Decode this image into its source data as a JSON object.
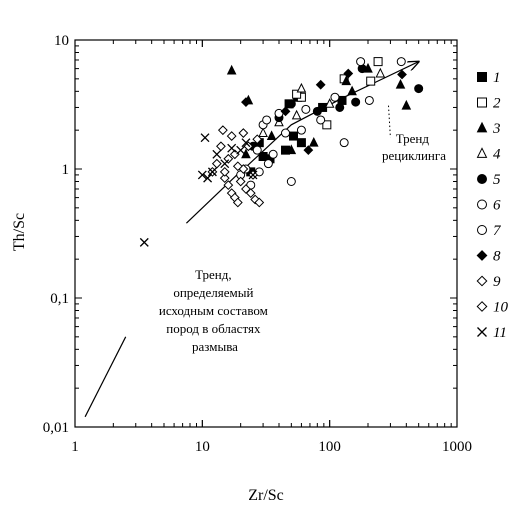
{
  "chart_data": {
    "type": "scatter",
    "xlabel": "Zr/Sc",
    "ylabel": "Th/Sc",
    "xscale": "log",
    "yscale": "log",
    "xlim": [
      1,
      1000
    ],
    "ylim": [
      0.01,
      10
    ],
    "x_ticks": [
      {
        "value": 1,
        "label": "1"
      },
      {
        "value": 10,
        "label": "10"
      },
      {
        "value": 100,
        "label": "100"
      },
      {
        "value": 1000,
        "label": "1000"
      }
    ],
    "y_ticks": [
      {
        "value": 0.01,
        "label": "0,01"
      },
      {
        "value": 0.1,
        "label": "0,1"
      },
      {
        "value": 1,
        "label": "1"
      },
      {
        "value": 10,
        "label": "10"
      }
    ],
    "legend_placement": "right",
    "annotations": [
      {
        "lines": [
          "Тренд,",
          "определяемый",
          "исходным составом",
          "пород в областях",
          "размыва"
        ]
      },
      {
        "lines": [
          "Тренд",
          "рециклинга"
        ]
      }
    ],
    "trend_lines": [
      {
        "name": "source",
        "points": [
          [
            1.2,
            0.012
          ],
          [
            2.5,
            0.05
          ]
        ],
        "arrow": false,
        "dashed": false
      },
      {
        "name": "source-upper",
        "points": [
          [
            7.5,
            0.38
          ],
          [
            22,
            1.05
          ]
        ],
        "arrow": false,
        "dashed": false
      },
      {
        "name": "recycling",
        "points": [
          [
            20,
            0.95
          ],
          [
            50,
            2.2
          ],
          [
            130,
            3.6
          ],
          [
            500,
            6.8
          ]
        ],
        "arrow": true,
        "dashed": false
      },
      {
        "name": "recycling-leader",
        "points": [
          [
            290,
            3.1
          ],
          [
            300,
            1.75
          ]
        ],
        "arrow": false,
        "dashed": true
      }
    ],
    "series": [
      {
        "name": "1",
        "marker": "square",
        "filled": true,
        "points": [
          [
            48,
            3.2
          ],
          [
            52,
            1.8
          ],
          [
            56,
            3.6
          ],
          [
            34,
            1.2
          ],
          [
            45,
            1.4
          ],
          [
            24,
            0.95
          ],
          [
            30,
            1.25
          ],
          [
            28,
            1.6
          ],
          [
            125,
            3.4
          ],
          [
            60,
            1.6
          ],
          [
            88,
            3.0
          ]
        ]
      },
      {
        "name": "2",
        "marker": "square",
        "filled": false,
        "points": [
          [
            240,
            6.8
          ],
          [
            130,
            5.0
          ],
          [
            210,
            4.8
          ],
          [
            60,
            3.6
          ],
          [
            95,
            2.2
          ],
          [
            55,
            3.8
          ]
        ]
      },
      {
        "name": "3",
        "marker": "triangle",
        "filled": true,
        "points": [
          [
            17,
            5.8
          ],
          [
            23,
            3.4
          ],
          [
            135,
            4.8
          ],
          [
            200,
            6.0
          ],
          [
            360,
            4.5
          ],
          [
            400,
            3.1
          ],
          [
            22,
            1.3
          ],
          [
            35,
            1.8
          ],
          [
            50,
            1.4
          ],
          [
            75,
            1.6
          ],
          [
            150,
            4.0
          ]
        ]
      },
      {
        "name": "4",
        "marker": "triangle",
        "filled": false,
        "points": [
          [
            60,
            4.2
          ],
          [
            100,
            3.2
          ],
          [
            30,
            1.9
          ],
          [
            40,
            2.3
          ],
          [
            55,
            2.6
          ],
          [
            250,
            5.5
          ]
        ]
      },
      {
        "name": "5",
        "marker": "circle",
        "filled": true,
        "points": [
          [
            500,
            4.2
          ],
          [
            180,
            6.0
          ],
          [
            160,
            3.3
          ],
          [
            40,
            2.5
          ],
          [
            25,
            1.5
          ],
          [
            80,
            2.8
          ],
          [
            120,
            3.0
          ],
          [
            50,
            3.2
          ]
        ]
      },
      {
        "name": "6",
        "marker": "circle",
        "filled": false,
        "points": [
          [
            175,
            6.8
          ],
          [
            365,
            6.8
          ],
          [
            205,
            3.4
          ],
          [
            130,
            1.6
          ],
          [
            50,
            0.8
          ],
          [
            65,
            2.9
          ],
          [
            33,
            1.1
          ],
          [
            27,
            1.4
          ],
          [
            40,
            2.7
          ],
          [
            22,
            1.0
          ],
          [
            30,
            2.2
          ]
        ]
      },
      {
        "name": "7",
        "marker": "circle",
        "filled": false,
        "points": [
          [
            28,
            0.95
          ],
          [
            36,
            1.3
          ],
          [
            45,
            1.9
          ],
          [
            110,
            3.6
          ],
          [
            24,
            0.75
          ],
          [
            20,
            0.9
          ],
          [
            60,
            2.0
          ],
          [
            32,
            2.4
          ],
          [
            85,
            2.4
          ]
        ]
      },
      {
        "name": "8",
        "marker": "diamond",
        "filled": true,
        "points": [
          [
            370,
            5.4
          ],
          [
            85,
            4.5
          ],
          [
            68,
            1.4
          ],
          [
            22,
            3.3
          ],
          [
            140,
            5.5
          ],
          [
            45,
            2.8
          ]
        ]
      },
      {
        "name": "9",
        "marker": "diamond",
        "filled": false,
        "points": [
          [
            14,
            1.5
          ],
          [
            15,
            0.85
          ],
          [
            16,
            0.75
          ],
          [
            17,
            0.65
          ],
          [
            18,
            0.6
          ],
          [
            19,
            0.55
          ],
          [
            20,
            0.8
          ],
          [
            22,
            0.7
          ],
          [
            24,
            0.65
          ],
          [
            26,
            0.58
          ],
          [
            28,
            0.55
          ],
          [
            14.5,
            2.0
          ],
          [
            21,
            1.0
          ],
          [
            25,
            0.9
          ]
        ]
      },
      {
        "name": "10",
        "marker": "diamond",
        "filled": false,
        "points": [
          [
            12,
            0.95
          ],
          [
            13,
            1.1
          ],
          [
            16,
            1.2
          ],
          [
            18,
            1.3
          ],
          [
            19,
            1.05
          ],
          [
            23,
            1.5
          ],
          [
            21,
            1.9
          ],
          [
            27,
            1.7
          ],
          [
            15,
            0.95
          ],
          [
            17,
            1.8
          ]
        ]
      },
      {
        "name": "11",
        "marker": "cross",
        "filled": false,
        "points": [
          [
            3.5,
            0.27
          ],
          [
            10,
            0.9
          ],
          [
            10.5,
            1.75
          ],
          [
            11,
            0.85
          ],
          [
            12,
            0.95
          ],
          [
            13,
            1.3
          ],
          [
            15,
            1.1
          ],
          [
            17,
            1.45
          ],
          [
            20,
            1.4
          ],
          [
            22,
            1.6
          ],
          [
            25,
            0.9
          ]
        ]
      }
    ]
  }
}
